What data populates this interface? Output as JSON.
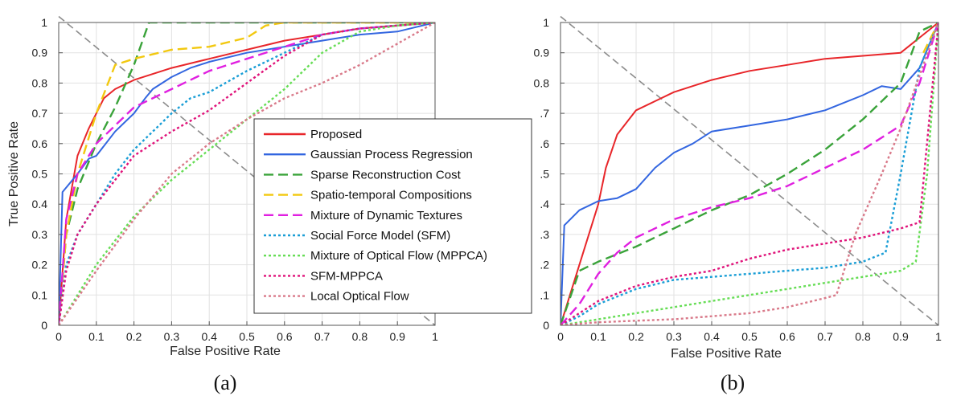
{
  "chart_data": [
    {
      "type": "line",
      "caption": "(a)",
      "xlabel": "False Positive Rate",
      "ylabel": "True Positive Rate",
      "xlim": [
        0,
        1
      ],
      "ylim": [
        0,
        1
      ],
      "xticks": [
        "0",
        "0.1",
        "0.2",
        "0.3",
        "0.4",
        "0.5",
        "0.6",
        "0.7",
        "0.8",
        "0.9",
        "1"
      ],
      "yticks": [
        "0",
        "0.1",
        "0.2",
        "0.3",
        "0.4",
        "0.5",
        "0.6",
        "0.7",
        "0.8",
        "0.9",
        "1"
      ],
      "grid": true,
      "legend_position": "lower-right",
      "diagonal": {
        "x": [
          0,
          1
        ],
        "y": [
          1.02,
          0
        ],
        "color": "#8c8c8c"
      },
      "series": [
        {
          "name": "Proposed",
          "color": "#e8262a",
          "dash": "solid",
          "x": [
            0,
            0.02,
            0.05,
            0.08,
            0.12,
            0.15,
            0.2,
            0.25,
            0.3,
            0.4,
            0.5,
            0.6,
            0.7,
            0.8,
            0.9,
            1
          ],
          "y": [
            0,
            0.35,
            0.56,
            0.65,
            0.75,
            0.78,
            0.81,
            0.83,
            0.85,
            0.88,
            0.91,
            0.94,
            0.96,
            0.98,
            0.99,
            1
          ]
        },
        {
          "name": "Gaussian Process Regression",
          "color": "#3366e0",
          "dash": "solid",
          "x": [
            0,
            0.01,
            0.05,
            0.08,
            0.1,
            0.15,
            0.2,
            0.23,
            0.25,
            0.3,
            0.35,
            0.4,
            0.5,
            0.6,
            0.7,
            0.8,
            0.9,
            1
          ],
          "y": [
            0,
            0.44,
            0.5,
            0.55,
            0.56,
            0.64,
            0.7,
            0.75,
            0.78,
            0.82,
            0.85,
            0.87,
            0.9,
            0.92,
            0.94,
            0.96,
            0.97,
            1
          ]
        },
        {
          "name": "Sparse Reconstruction Cost",
          "color": "#3aa33a",
          "dash": "dash",
          "x": [
            0,
            0.02,
            0.05,
            0.1,
            0.15,
            0.2,
            0.24,
            0.26,
            0.4,
            0.6,
            0.8,
            1
          ],
          "y": [
            0,
            0.3,
            0.45,
            0.6,
            0.72,
            0.86,
            1,
            1,
            1,
            1,
            1,
            1
          ]
        },
        {
          "name": "Spatio-temporal Compositions",
          "color": "#f2c80f",
          "dash": "dash",
          "x": [
            0,
            0.02,
            0.05,
            0.1,
            0.15,
            0.2,
            0.3,
            0.4,
            0.5,
            0.55,
            0.6,
            0.8,
            1
          ],
          "y": [
            0,
            0.3,
            0.5,
            0.7,
            0.86,
            0.88,
            0.91,
            0.92,
            0.95,
            0.99,
            1,
            1,
            1
          ]
        },
        {
          "name": "Mixture of Dynamic Textures",
          "color": "#e020e0",
          "dash": "dash",
          "x": [
            0,
            0.02,
            0.05,
            0.1,
            0.15,
            0.2,
            0.3,
            0.4,
            0.5,
            0.6,
            0.7,
            0.8,
            0.9,
            1
          ],
          "y": [
            0,
            0.35,
            0.5,
            0.6,
            0.66,
            0.72,
            0.78,
            0.84,
            0.88,
            0.92,
            0.96,
            0.98,
            0.99,
            1
          ]
        },
        {
          "name": "Social Force Model (SFM)",
          "color": "#1a9ed6",
          "dash": "dot",
          "x": [
            0,
            0.02,
            0.05,
            0.1,
            0.15,
            0.2,
            0.3,
            0.35,
            0.4,
            0.5,
            0.6,
            0.7,
            0.8,
            0.9,
            1
          ],
          "y": [
            0,
            0.2,
            0.3,
            0.4,
            0.5,
            0.58,
            0.7,
            0.75,
            0.77,
            0.84,
            0.9,
            0.96,
            0.98,
            0.99,
            1
          ]
        },
        {
          "name": "Mixture of Optical Flow (MPPCA)",
          "color": "#66dd55",
          "dash": "dot",
          "x": [
            0,
            0.1,
            0.2,
            0.3,
            0.4,
            0.5,
            0.6,
            0.7,
            0.8,
            0.9,
            1
          ],
          "y": [
            0,
            0.2,
            0.36,
            0.48,
            0.58,
            0.68,
            0.78,
            0.9,
            0.97,
            0.99,
            1
          ]
        },
        {
          "name": "SFM-MPPCA",
          "color": "#e0137a",
          "dash": "dot",
          "x": [
            0,
            0.02,
            0.05,
            0.1,
            0.15,
            0.2,
            0.3,
            0.4,
            0.5,
            0.6,
            0.7,
            0.8,
            0.9,
            1
          ],
          "y": [
            0,
            0.18,
            0.3,
            0.4,
            0.48,
            0.56,
            0.64,
            0.71,
            0.8,
            0.89,
            0.96,
            0.98,
            0.99,
            1
          ]
        },
        {
          "name": "Local Optical Flow",
          "color": "#d97a8a",
          "dash": "dot",
          "x": [
            0,
            0.1,
            0.2,
            0.3,
            0.4,
            0.5,
            0.6,
            0.7,
            0.8,
            0.9,
            1
          ],
          "y": [
            0,
            0.18,
            0.35,
            0.5,
            0.6,
            0.68,
            0.75,
            0.8,
            0.86,
            0.93,
            1
          ]
        }
      ]
    },
    {
      "type": "line",
      "caption": "(b)",
      "xlabel": "False Positive Rate",
      "ylabel": "",
      "xlim": [
        0,
        1
      ],
      "ylim": [
        0,
        1
      ],
      "xticks": [
        "0",
        "0.1",
        "0.2",
        "0.3",
        "0.4",
        "0.5",
        "0.6",
        "0.7",
        "0.8",
        "0.9",
        "1"
      ],
      "yticks": [
        "0",
        ".1",
        ".2",
        ".3",
        ".4",
        ".5",
        ".6",
        ".7",
        "0.8",
        "0.9",
        "1"
      ],
      "grid": true,
      "diagonal": {
        "x": [
          0,
          1
        ],
        "y": [
          1.02,
          0
        ],
        "color": "#8c8c8c"
      },
      "series": [
        {
          "name": "Proposed",
          "color": "#e8262a",
          "dash": "solid",
          "x": [
            0,
            0.05,
            0.1,
            0.12,
            0.15,
            0.2,
            0.25,
            0.3,
            0.4,
            0.5,
            0.6,
            0.7,
            0.8,
            0.9,
            1
          ],
          "y": [
            0,
            0.2,
            0.4,
            0.52,
            0.63,
            0.71,
            0.74,
            0.77,
            0.81,
            0.84,
            0.86,
            0.88,
            0.89,
            0.9,
            1
          ]
        },
        {
          "name": "Gaussian Process Regression",
          "color": "#3366e0",
          "dash": "solid",
          "x": [
            0,
            0.01,
            0.05,
            0.1,
            0.15,
            0.2,
            0.25,
            0.3,
            0.35,
            0.4,
            0.5,
            0.6,
            0.7,
            0.8,
            0.85,
            0.9,
            0.95,
            1
          ],
          "y": [
            0,
            0.33,
            0.38,
            0.41,
            0.42,
            0.45,
            0.52,
            0.57,
            0.6,
            0.64,
            0.66,
            0.68,
            0.71,
            0.76,
            0.79,
            0.78,
            0.85,
            1
          ]
        },
        {
          "name": "Sparse Reconstruction Cost",
          "color": "#3aa33a",
          "dash": "dash",
          "x": [
            0,
            0.05,
            0.1,
            0.2,
            0.3,
            0.4,
            0.5,
            0.6,
            0.7,
            0.8,
            0.9,
            0.95,
            1
          ],
          "y": [
            0,
            0.18,
            0.21,
            0.26,
            0.32,
            0.38,
            0.43,
            0.5,
            0.58,
            0.68,
            0.8,
            0.97,
            1
          ]
        },
        {
          "name": "Spatio-temporal Compositions",
          "color": "#f2c80f",
          "dash": "dash",
          "x": [
            0.96,
            1
          ],
          "y": [
            0.9,
            1
          ]
        },
        {
          "name": "Mixture of Dynamic Textures",
          "color": "#e020e0",
          "dash": "dash",
          "x": [
            0,
            0.05,
            0.1,
            0.15,
            0.2,
            0.3,
            0.4,
            0.5,
            0.6,
            0.7,
            0.8,
            0.9,
            0.95,
            1
          ],
          "y": [
            0,
            0.07,
            0.17,
            0.24,
            0.29,
            0.35,
            0.39,
            0.42,
            0.46,
            0.52,
            0.58,
            0.66,
            0.8,
            1
          ]
        },
        {
          "name": "Social Force Model (SFM)",
          "color": "#1a9ed6",
          "dash": "dot",
          "x": [
            0,
            0.05,
            0.1,
            0.2,
            0.3,
            0.4,
            0.5,
            0.6,
            0.7,
            0.8,
            0.86,
            0.9,
            0.95,
            1
          ],
          "y": [
            0,
            0.03,
            0.07,
            0.12,
            0.15,
            0.16,
            0.17,
            0.18,
            0.19,
            0.21,
            0.24,
            0.5,
            0.85,
            1
          ]
        },
        {
          "name": "Mixture of Optical Flow (MPPCA)",
          "color": "#66dd55",
          "dash": "dot",
          "x": [
            0,
            0.1,
            0.2,
            0.3,
            0.4,
            0.5,
            0.6,
            0.7,
            0.8,
            0.9,
            0.94,
            0.97,
            1
          ],
          "y": [
            0,
            0.02,
            0.04,
            0.06,
            0.08,
            0.1,
            0.12,
            0.14,
            0.16,
            0.18,
            0.21,
            0.5,
            1
          ]
        },
        {
          "name": "SFM-MPPCA",
          "color": "#e0137a",
          "dash": "dot",
          "x": [
            0,
            0.05,
            0.1,
            0.2,
            0.3,
            0.4,
            0.5,
            0.6,
            0.7,
            0.8,
            0.9,
            0.95,
            1
          ],
          "y": [
            0,
            0.04,
            0.08,
            0.13,
            0.16,
            0.18,
            0.22,
            0.25,
            0.27,
            0.29,
            0.32,
            0.34,
            1
          ]
        },
        {
          "name": "Local Optical Flow",
          "color": "#d97a8a",
          "dash": "dot",
          "x": [
            0,
            0.1,
            0.2,
            0.3,
            0.4,
            0.5,
            0.6,
            0.7,
            0.73,
            0.78,
            0.85,
            0.9,
            1
          ],
          "y": [
            0,
            0.01,
            0.015,
            0.02,
            0.03,
            0.04,
            0.06,
            0.09,
            0.1,
            0.3,
            0.5,
            0.65,
            1
          ]
        }
      ]
    }
  ]
}
